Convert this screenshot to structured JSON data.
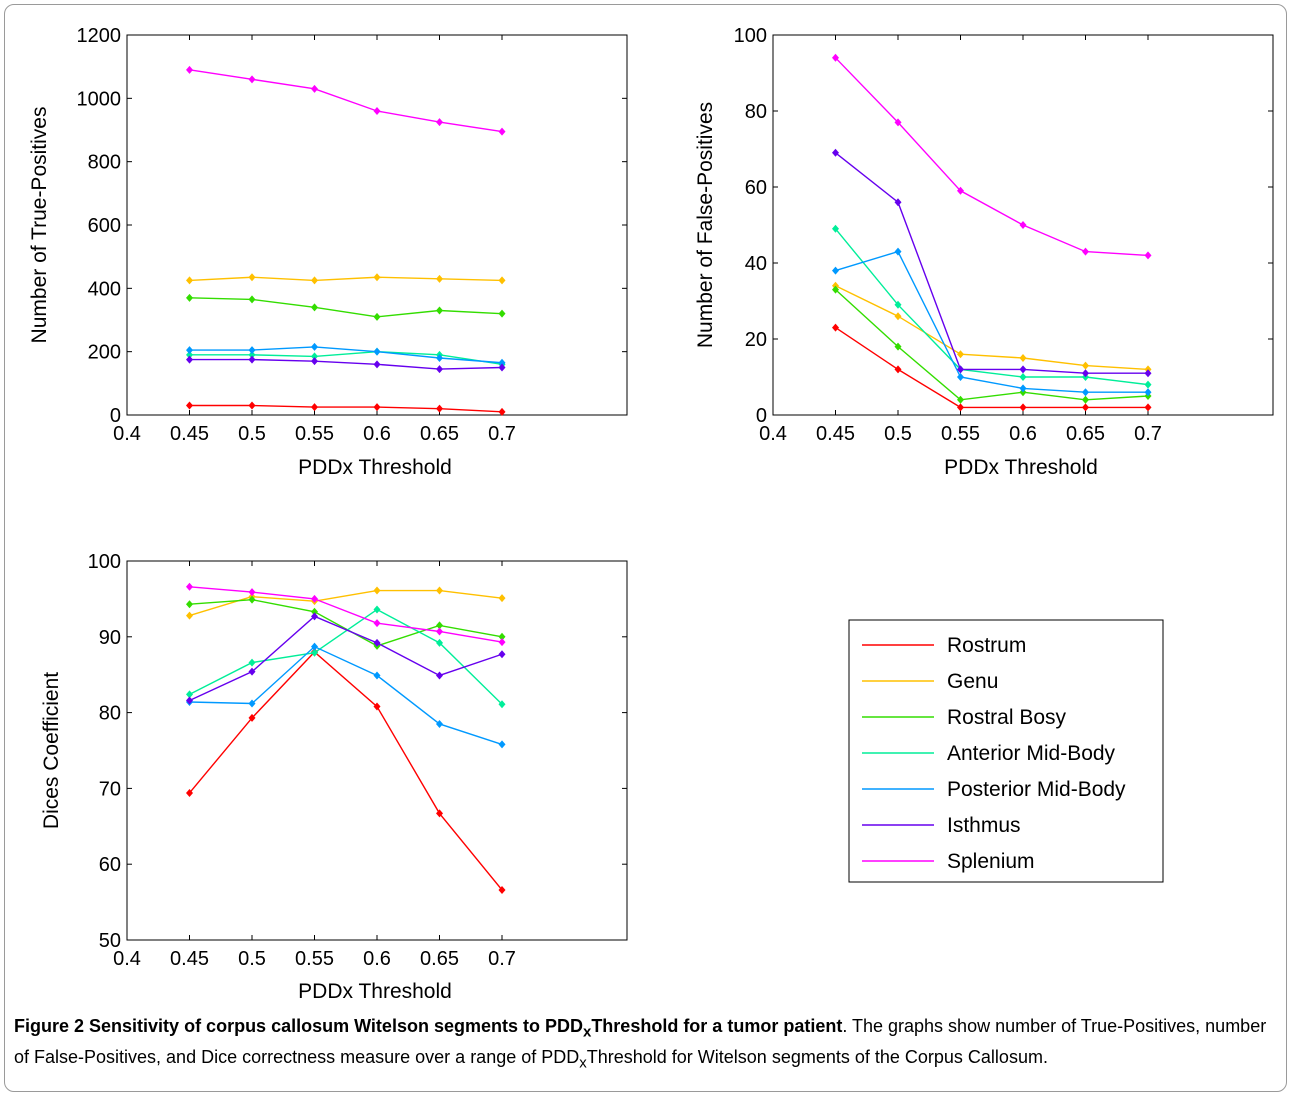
{
  "chart_data": [
    {
      "type": "line",
      "id": "tp",
      "ylabel": "Number of True-Positives",
      "xlabel": "PDDx Threshold",
      "xlim": [
        0.4,
        0.8
      ],
      "ylim": [
        0,
        1200
      ],
      "xticks": [
        "0.4",
        "0.45",
        "0.5",
        "0.55",
        "0.6",
        "0.65",
        "0.7"
      ],
      "yticks": [
        "0",
        "200",
        "400",
        "600",
        "800",
        "1000",
        "1200"
      ],
      "x": [
        0.45,
        0.5,
        0.55,
        0.6,
        0.65,
        0.7
      ],
      "series": [
        {
          "name": "Rostrum",
          "color": "#ff0000",
          "values": [
            30,
            30,
            25,
            25,
            20,
            10
          ]
        },
        {
          "name": "Genu",
          "color": "#ffc000",
          "values": [
            425,
            435,
            425,
            435,
            430,
            425
          ]
        },
        {
          "name": "Rostral Bosy",
          "color": "#33dd00",
          "values": [
            370,
            365,
            340,
            310,
            330,
            320
          ]
        },
        {
          "name": "Anterior Mid-Body",
          "color": "#00ee99",
          "values": [
            190,
            190,
            185,
            200,
            190,
            160
          ]
        },
        {
          "name": "Posterior Mid-Body",
          "color": "#0099ff",
          "values": [
            205,
            205,
            215,
            200,
            180,
            165
          ]
        },
        {
          "name": "Isthmus",
          "color": "#6600ee",
          "values": [
            175,
            175,
            170,
            160,
            145,
            150
          ]
        },
        {
          "name": "Splenium",
          "color": "#ff00ff",
          "values": [
            1090,
            1060,
            1030,
            960,
            925,
            895
          ]
        }
      ]
    },
    {
      "type": "line",
      "id": "fp",
      "ylabel": "Number of False-Positives",
      "xlabel": "PDDx Threshold",
      "xlim": [
        0.4,
        0.8
      ],
      "ylim": [
        0,
        100
      ],
      "xticks": [
        "0.4",
        "0.45",
        "0.5",
        "0.55",
        "0.6",
        "0.65",
        "0.7"
      ],
      "yticks": [
        "0",
        "20",
        "40",
        "60",
        "80",
        "100"
      ],
      "x": [
        0.45,
        0.5,
        0.55,
        0.6,
        0.65,
        0.7
      ],
      "series": [
        {
          "name": "Rostrum",
          "color": "#ff0000",
          "values": [
            23,
            12,
            2,
            2,
            2,
            2
          ]
        },
        {
          "name": "Genu",
          "color": "#ffc000",
          "values": [
            34,
            26,
            16,
            15,
            13,
            12
          ]
        },
        {
          "name": "Rostral Bosy",
          "color": "#33dd00",
          "values": [
            33,
            18,
            4,
            6,
            4,
            5
          ]
        },
        {
          "name": "Anterior Mid-Body",
          "color": "#00ee99",
          "values": [
            49,
            29,
            12,
            10,
            10,
            8
          ]
        },
        {
          "name": "Posterior Mid-Body",
          "color": "#0099ff",
          "values": [
            38,
            43,
            10,
            7,
            6,
            6
          ]
        },
        {
          "name": "Isthmus",
          "color": "#6600ee",
          "values": [
            69,
            56,
            12,
            12,
            11,
            11
          ]
        },
        {
          "name": "Splenium",
          "color": "#ff00ff",
          "values": [
            94,
            77,
            59,
            50,
            43,
            42
          ]
        }
      ]
    },
    {
      "type": "line",
      "id": "dice",
      "ylabel": "Dices Coefficient",
      "xlabel": "PDDx Threshold",
      "xlim": [
        0.4,
        0.8
      ],
      "ylim": [
        50,
        100
      ],
      "xticks": [
        "0.4",
        "0.45",
        "0.5",
        "0.55",
        "0.6",
        "0.65",
        "0.7"
      ],
      "yticks": [
        "50",
        "60",
        "70",
        "80",
        "90",
        "100"
      ],
      "x": [
        0.45,
        0.5,
        0.55,
        0.6,
        0.65,
        0.7
      ],
      "series": [
        {
          "name": "Rostrum",
          "color": "#ff0000",
          "values": [
            69.4,
            79.3,
            88,
            80.8,
            66.7,
            56.6
          ]
        },
        {
          "name": "Genu",
          "color": "#ffc000",
          "values": [
            92.8,
            95.3,
            94.7,
            96.1,
            96.1,
            95.1
          ]
        },
        {
          "name": "Rostral Bosy",
          "color": "#33dd00",
          "values": [
            94.3,
            94.9,
            93.3,
            88.8,
            91.5,
            90
          ]
        },
        {
          "name": "Anterior Mid-Body",
          "color": "#00ee99",
          "values": [
            82.4,
            86.6,
            87.9,
            93.6,
            89.2,
            81.1
          ]
        },
        {
          "name": "Posterior Mid-Body",
          "color": "#0099ff",
          "values": [
            81.4,
            81.2,
            88.7,
            84.9,
            78.5,
            75.8
          ]
        },
        {
          "name": "Isthmus",
          "color": "#6600ee",
          "values": [
            81.6,
            85.4,
            92.7,
            89.2,
            84.9,
            87.7
          ]
        },
        {
          "name": "Splenium",
          "color": "#ff00ff",
          "values": [
            96.6,
            95.9,
            95,
            91.8,
            90.7,
            89.3
          ]
        }
      ]
    }
  ],
  "legend": {
    "entries": [
      "Rostrum",
      "Genu",
      "Rostral Bosy",
      "Anterior Mid-Body",
      "Posterior Mid-Body",
      "Isthmus",
      "Splenium"
    ]
  },
  "caption": {
    "label": "Figure 2",
    "title_before": "Sensitivity of corpus callosum Witelson segments to PDD",
    "title_sub": "x",
    "title_after": "Threshold for a tumor patient",
    "text_before": ". The graphs show number of True-Positives, number of False-Positives, and Dice correctness measure over a range of PDD",
    "text_sub": "x",
    "text_after": "Threshold for Witelson segments of the Corpus Callosum."
  }
}
